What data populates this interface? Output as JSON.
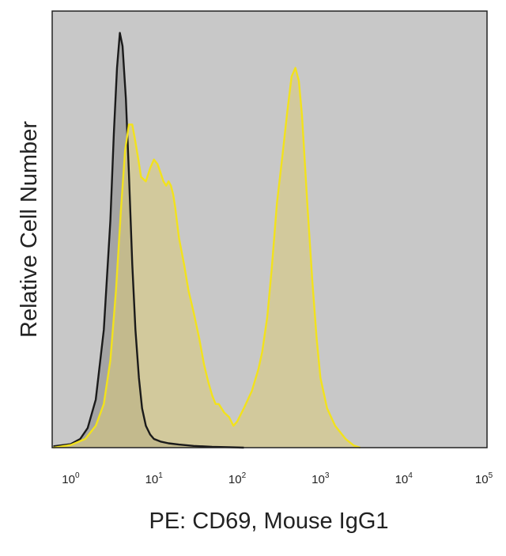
{
  "chart_data": {
    "type": "area",
    "title": "",
    "xlabel": "PE: CD69, Mouse IgG1",
    "ylabel": "Relative Cell Number",
    "x_scale": "log",
    "xlim": [
      0.6,
      100000
    ],
    "ylim": [
      0,
      100
    ],
    "y_ticks_shown": false,
    "x_ticks": [
      {
        "base": "10",
        "exp": "0",
        "value": 1
      },
      {
        "base": "10",
        "exp": "1",
        "value": 10
      },
      {
        "base": "10",
        "exp": "2",
        "value": 100
      },
      {
        "base": "10",
        "exp": "3",
        "value": 1000
      },
      {
        "base": "10",
        "exp": "4",
        "value": 10000
      },
      {
        "base": "10",
        "exp": "5",
        "value": 100000
      }
    ],
    "colors": {
      "plot_background": "#c8c8c8",
      "frame": "#222222"
    },
    "series": [
      {
        "name": "Mouse IgG1",
        "line_color": "#1a1a1a",
        "fill_color": "#8c8c8c",
        "fill_opacity": 0.6,
        "x": [
          0.62,
          1,
          1.3,
          1.6,
          2,
          2.5,
          3,
          3.3,
          3.6,
          3.9,
          4.2,
          4.6,
          5,
          5.5,
          6,
          6.6,
          7.2,
          8,
          9,
          10,
          12,
          15,
          20,
          30,
          50,
          80,
          120
        ],
        "y": [
          0.3,
          0.8,
          2,
          4.5,
          11,
          27,
          52,
          72,
          87,
          95,
          92,
          80,
          63,
          42,
          27,
          16,
          9,
          5,
          3,
          2,
          1.4,
          1,
          0.7,
          0.4,
          0.2,
          0.1,
          0
        ]
      },
      {
        "name": "CD69",
        "line_color": "#f2e21c",
        "fill_color": "#d8c97e",
        "fill_opacity": 0.6,
        "x": [
          0.62,
          1,
          1.5,
          2,
          2.5,
          3,
          3.5,
          4,
          4.5,
          5,
          5.5,
          6,
          6.5,
          7,
          8,
          9,
          10,
          11,
          12,
          13,
          14,
          15,
          16,
          17,
          18,
          20,
          23,
          26,
          30,
          35,
          40,
          45,
          50,
          55,
          60,
          70,
          80,
          90,
          100,
          120,
          150,
          180,
          200,
          230,
          260,
          300,
          350,
          400,
          450,
          500,
          550,
          600,
          700,
          800,
          900,
          1000,
          1200,
          1500,
          2000,
          2500,
          3000
        ],
        "y": [
          0,
          0.6,
          2,
          5,
          10,
          20,
          36,
          54,
          68,
          74,
          74,
          70,
          66,
          62,
          61,
          64,
          66,
          65,
          63,
          61,
          60,
          61,
          60,
          58,
          55,
          48,
          42,
          36,
          31,
          25,
          19,
          15,
          12,
          10,
          10,
          8,
          7,
          5,
          6,
          9,
          13,
          18,
          22,
          30,
          41,
          56,
          67,
          77,
          85,
          87,
          84,
          76,
          55,
          38,
          25,
          16,
          9,
          5,
          2,
          0.5,
          0
        ]
      }
    ]
  }
}
